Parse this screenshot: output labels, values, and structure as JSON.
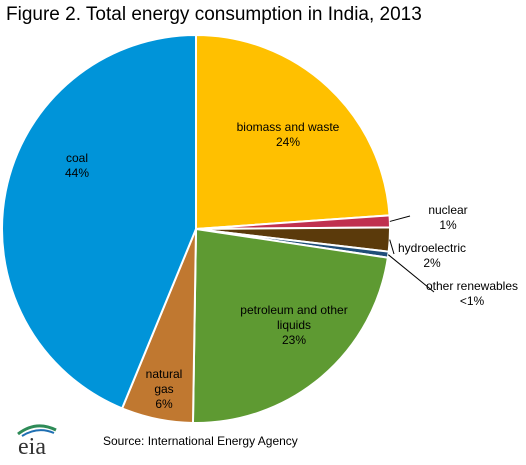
{
  "title": "Figure 2. Total energy consumption in India, 2013",
  "source": "Source: International Energy Agency",
  "logo_text": "eia",
  "chart_data": {
    "type": "pie",
    "title": "Figure 2. Total energy consumption in India, 2013",
    "slices": [
      {
        "name": "biomass and waste",
        "label_lines": [
          "biomass and waste",
          "24%"
        ],
        "value": 24,
        "color": "#FFC000",
        "label_side": "inside"
      },
      {
        "name": "nuclear",
        "label_lines": [
          "nuclear",
          "1%"
        ],
        "value": 1,
        "color": "#C0304F",
        "label_side": "outside"
      },
      {
        "name": "hydroelectric",
        "label_lines": [
          "hydroelectric",
          "2%"
        ],
        "value": 2,
        "color": "#5B3A0B",
        "label_side": "outside"
      },
      {
        "name": "other renewables",
        "label_lines": [
          "other renewables",
          "<1%"
        ],
        "value": 0.5,
        "color": "#1F4E79",
        "label_side": "outside"
      },
      {
        "name": "petroleum and other liquids",
        "label_lines": [
          "petroleum and other",
          "liquids",
          "23%"
        ],
        "value": 23,
        "color": "#5E9A32",
        "label_side": "inside"
      },
      {
        "name": "natural gas",
        "label_lines": [
          "natural",
          "gas",
          "6%"
        ],
        "value": 6,
        "color": "#C07830",
        "label_side": "inside"
      },
      {
        "name": "coal",
        "label_lines": [
          "coal",
          "44%"
        ],
        "value": 44,
        "color": "#0094D9",
        "label_side": "inside"
      }
    ]
  }
}
